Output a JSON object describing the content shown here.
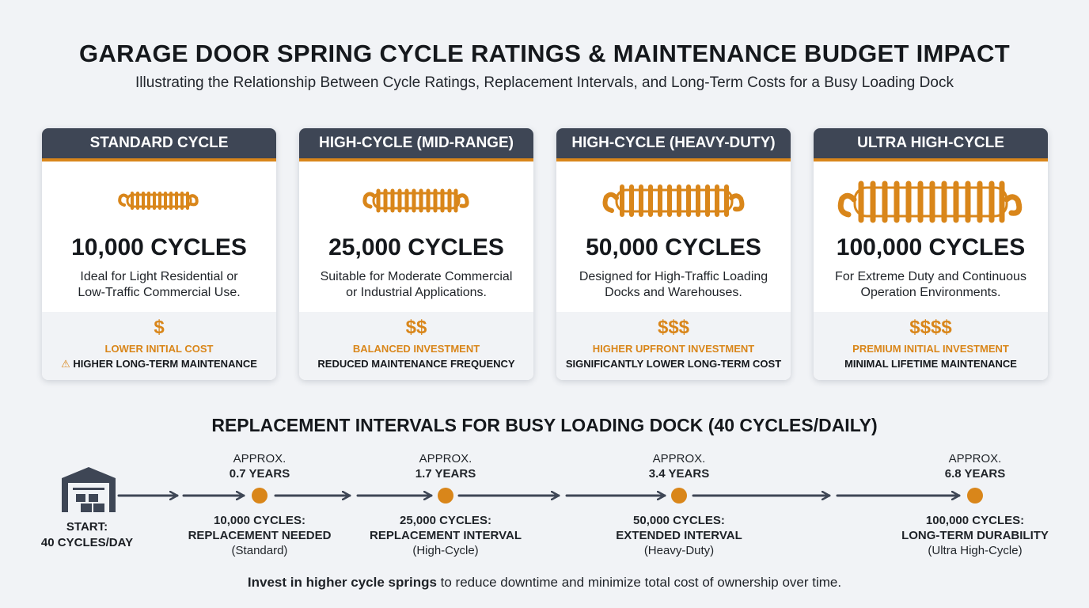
{
  "header": {
    "title": "GARAGE DOOR SPRING CYCLE RATINGS & MAINTENANCE BUDGET IMPACT",
    "subtitle": "Illustrating the Relationship Between Cycle Ratings, Replacement Intervals, and Long-Term Costs for a Busy Loading Dock"
  },
  "colors": {
    "accent": "#d9861a",
    "header_bg": "#3e4655",
    "page_bg": "#f1f3f6",
    "line": "#3e4655"
  },
  "cards": [
    {
      "title": "STANDARD CYCLE",
      "cycles": "10,000 CYCLES",
      "desc_line1": "Ideal for Light Residential or",
      "desc_line2": "Low-Traffic Commercial Use.",
      "dollars": "$",
      "cost": "LOWER INITIAL COST",
      "maintenance": "HIGHER LONG-TERM MAINTENANCE",
      "warning_icon": "warning-icon"
    },
    {
      "title": "HIGH-CYCLE (MID-RANGE)",
      "cycles": "25,000 CYCLES",
      "desc_line1": "Suitable for Moderate Commercial",
      "desc_line2": "or Industrial Applications.",
      "dollars": "$$",
      "cost": "BALANCED INVESTMENT",
      "maintenance": "REDUCED MAINTENANCE FREQUENCY"
    },
    {
      "title": "HIGH-CYCLE (HEAVY-DUTY)",
      "cycles": "50,000 CYCLES",
      "desc_line1": "Designed for High-Traffic Loading",
      "desc_line2": "Docks and Warehouses.",
      "dollars": "$$$",
      "cost": "HIGHER UPFRONT INVESTMENT",
      "maintenance": "SIGNIFICANTLY LOWER LONG-TERM COST"
    },
    {
      "title": "ULTRA HIGH-CYCLE",
      "cycles": "100,000 CYCLES",
      "desc_line1": "For Extreme Duty and Continuous",
      "desc_line2": "Operation Environments.",
      "dollars": "$$$$",
      "cost": "PREMIUM INITIAL INVESTMENT",
      "maintenance": "MINIMAL LIFETIME MAINTENANCE"
    }
  ],
  "timeline": {
    "title": "REPLACEMENT INTERVALS FOR BUSY LOADING DOCK (40 CYCLES/DAILY)",
    "start_line1": "START:",
    "start_line2": "40 CYCLES/DAY",
    "start_icon": "warehouse-icon",
    "milestones": [
      {
        "approx": "APPROX.",
        "years": "0.7 YEARS",
        "cycles": "10,000 CYCLES:",
        "label": "REPLACEMENT NEEDED",
        "type": "(Standard)"
      },
      {
        "approx": "APPROX.",
        "years": "1.7 YEARS",
        "cycles": "25,000 CYCLES:",
        "label": "REPLACEMENT INTERVAL",
        "type": "(High-Cycle)"
      },
      {
        "approx": "APPROX.",
        "years": "3.4 YEARS",
        "cycles": "50,000 CYCLES:",
        "label": "EXTENDED INTERVAL",
        "type": "(Heavy-Duty)"
      },
      {
        "approx": "APPROX.",
        "years": "6.8 YEARS",
        "cycles": "100,000 CYCLES:",
        "label": "LONG-TERM DURABILITY",
        "type": "(Ultra High-Cycle)"
      }
    ]
  },
  "footer": {
    "bold": "Invest in higher cycle springs",
    "rest": " to reduce downtime and minimize total cost of ownership over time."
  }
}
